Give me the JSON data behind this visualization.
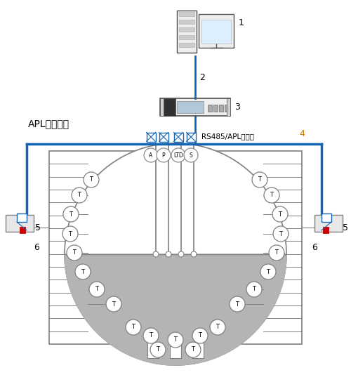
{
  "bg_color": "#ffffff",
  "blue_color": "#1464b4",
  "gray_color": "#808080",
  "light_gray": "#b4b4b4",
  "dark_gray": "#505050",
  "red_color": "#c80000",
  "orange_color": "#c87800",
  "label_1": "1",
  "label_2": "2",
  "label_3": "3",
  "label_4": "4",
  "label_5": "5",
  "label_6": "6",
  "apl_text": "APL现场网络",
  "rs485_text": "RS485/APL转换器",
  "sensor_labels": [
    "A",
    "P",
    "LTD",
    "S"
  ]
}
